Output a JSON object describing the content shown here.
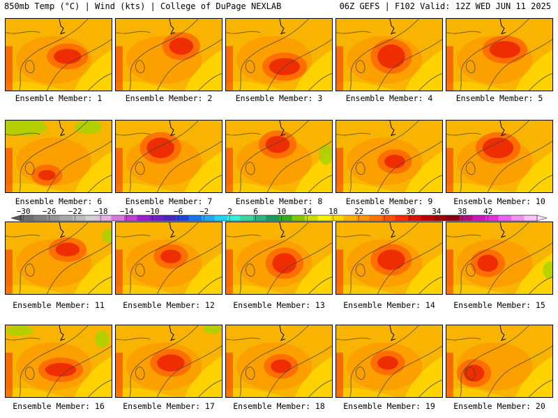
{
  "header": {
    "left": "850mb Temp (°C) | Wind (kts) | College of DuPage NEXLAB",
    "right": "06Z GEFS | F102 Valid: 12Z WED JUN 11 2025"
  },
  "members": [
    {
      "label": "Ensemble Member: 1"
    },
    {
      "label": "Ensemble Member: 2"
    },
    {
      "label": "Ensemble Member: 3"
    },
    {
      "label": "Ensemble Member: 4"
    },
    {
      "label": "Ensemble Member: 5"
    },
    {
      "label": "Ensemble Member: 6"
    },
    {
      "label": "Ensemble Member: 7"
    },
    {
      "label": "Ensemble Member: 8"
    },
    {
      "label": "Ensemble Member: 9"
    },
    {
      "label": "Ensemble Member: 10"
    },
    {
      "label": "Ensemble Member: 11"
    },
    {
      "label": "Ensemble Member: 12"
    },
    {
      "label": "Ensemble Member: 13"
    },
    {
      "label": "Ensemble Member: 14"
    },
    {
      "label": "Ensemble Member: 15"
    },
    {
      "label": "Ensemble Member: 16"
    },
    {
      "label": "Ensemble Member: 17"
    },
    {
      "label": "Ensemble Member: 18"
    },
    {
      "label": "Ensemble Member: 19"
    },
    {
      "label": "Ensemble Member: 20"
    }
  ],
  "colorbar": {
    "tick_labels": [
      "−30",
      "−26",
      "−22",
      "−18",
      "−14",
      "−10",
      "−6",
      "−2",
      "2",
      "6",
      "10",
      "14",
      "18",
      "22",
      "26",
      "30",
      "34",
      "38",
      "42"
    ],
    "colors": [
      "#6f6f6f",
      "#808080",
      "#959595",
      "#a8a8a8",
      "#bcbcbc",
      "#d2d2d2",
      "#e2b4e2",
      "#d878d8",
      "#c040d0",
      "#9c1ed2",
      "#7020c8",
      "#4826c4",
      "#2442d8",
      "#1e72ec",
      "#22a8f4",
      "#22d4f4",
      "#36f0dc",
      "#3cd6a6",
      "#28b884",
      "#1a9a5e",
      "#3aaa20",
      "#86c800",
      "#c6e000",
      "#f4f400",
      "#ffd800",
      "#ffb400",
      "#ff9600",
      "#ff7400",
      "#ff5000",
      "#f42c00",
      "#dc1000",
      "#c00000",
      "#a00000",
      "#8a0010",
      "#b0107a",
      "#cc18b8",
      "#e030d8",
      "#f060f0",
      "#f492f4",
      "#f8c4f8"
    ]
  }
}
